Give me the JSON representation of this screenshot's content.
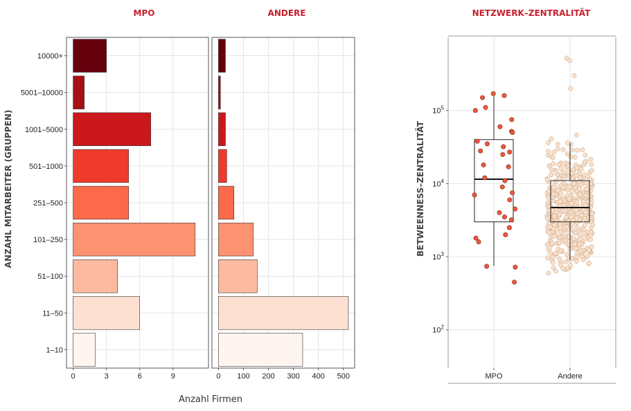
{
  "chart_data": [
    {
      "type": "bar",
      "orientation": "horizontal",
      "title": "MPO",
      "ylabel": "ANZAHL MITARBEITER (GRUPPEN)",
      "xlabel": "Anzahl Firmen",
      "categories": [
        "10000+",
        "5001–10000",
        "1001–5000",
        "501–1000",
        "251–500",
        "101–250",
        "51–100",
        "11–50",
        "1–10"
      ],
      "values": [
        3,
        1,
        7,
        5,
        5,
        11,
        4,
        6,
        2
      ],
      "colors": [
        "#67000d",
        "#a50f15",
        "#cb181d",
        "#ef3b2c",
        "#fb6a4a",
        "#fc9272",
        "#fcbba1",
        "#fee0d2",
        "#fff5f0"
      ],
      "xticks": [
        0,
        3,
        6,
        9
      ],
      "xlim": [
        -0.6,
        12.2
      ]
    },
    {
      "type": "bar",
      "orientation": "horizontal",
      "title": "ANDERE",
      "categories": [
        "10000+",
        "5001–10000",
        "1001–5000",
        "501–1000",
        "251–500",
        "101–250",
        "51–100",
        "11–50",
        "1–10"
      ],
      "values": [
        28,
        8,
        28,
        33,
        62,
        140,
        155,
        520,
        337
      ],
      "colors": [
        "#67000d",
        "#a50f15",
        "#cb181d",
        "#ef3b2c",
        "#fb6a4a",
        "#fc9272",
        "#fcbba1",
        "#fee0d2",
        "#fff5f0"
      ],
      "xticks": [
        0,
        100,
        200,
        300,
        400,
        500
      ],
      "xlim": [
        -26,
        545
      ]
    },
    {
      "type": "box",
      "title": "NETZWERK–ZENTRALITÄT",
      "ylabel": "BETWEENNESS–ZENTRALITÄT",
      "yscale": "log",
      "ylim": [
        30,
        1000000
      ],
      "yticks": [
        {
          "value": 100,
          "label": "10",
          "exp": "2"
        },
        {
          "value": 1000,
          "label": "10",
          "exp": "3"
        },
        {
          "value": 10000,
          "label": "10",
          "exp": "4"
        },
        {
          "value": 100000,
          "label": "10",
          "exp": "5"
        }
      ],
      "categories": [
        "MPO",
        "Andere"
      ],
      "boxes": [
        {
          "q1": 3000,
          "median": 11500,
          "q3": 40000,
          "whisker_low": 750,
          "whisker_high": 160000,
          "color": "#e8593f"
        },
        {
          "q1": 3000,
          "median": 4700,
          "q3": 11000,
          "whisker_low": 900,
          "whisker_high": 36000,
          "color": "#f8e0cc"
        }
      ],
      "points": [
        [
          160000,
          170000,
          150000,
          110000,
          100000,
          75000,
          60000,
          52000,
          50000,
          38000,
          35000,
          32000,
          28000,
          27000,
          25000,
          18000,
          17000,
          12000,
          11000,
          9000,
          7500,
          7000,
          6000,
          4500,
          4000,
          3500,
          3200,
          2500,
          2000,
          1800,
          1600,
          740,
          720,
          450
        ],
        [
          520000,
          480000,
          300000,
          200000
        ]
      ]
    }
  ]
}
